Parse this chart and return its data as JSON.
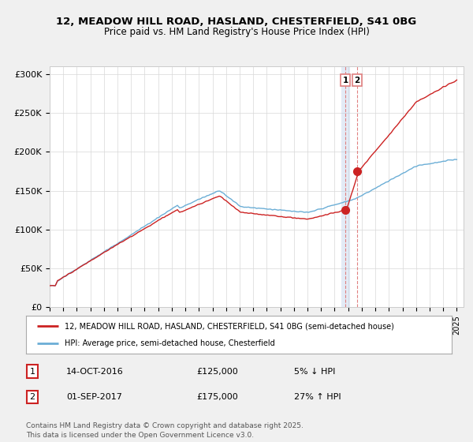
{
  "title_line1": "12, MEADOW HILL ROAD, HASLAND, CHESTERFIELD, S41 0BG",
  "title_line2": "Price paid vs. HM Land Registry's House Price Index (HPI)",
  "ylim": [
    0,
    310000
  ],
  "yticks": [
    0,
    50000,
    100000,
    150000,
    200000,
    250000,
    300000
  ],
  "ytick_labels": [
    "£0",
    "£50K",
    "£100K",
    "£150K",
    "£200K",
    "£250K",
    "£300K"
  ],
  "sale1_year": 2016.79,
  "sale1_price": 125000,
  "sale2_year": 2017.67,
  "sale2_price": 175000,
  "hpi_color": "#6baed6",
  "price_color": "#cc2222",
  "vline_color": "#e08080",
  "vline_color1": "#b0c8e8",
  "legend_label1": "12, MEADOW HILL ROAD, HASLAND, CHESTERFIELD, S41 0BG (semi-detached house)",
  "legend_label2": "HPI: Average price, semi-detached house, Chesterfield",
  "note1_num": "1",
  "note1_date": "14-OCT-2016",
  "note1_price": "£125,000",
  "note1_pct": "5% ↓ HPI",
  "note2_num": "2",
  "note2_date": "01-SEP-2017",
  "note2_price": "£175,000",
  "note2_pct": "27% ↑ HPI",
  "footer": "Contains HM Land Registry data © Crown copyright and database right 2025.\nThis data is licensed under the Open Government Licence v3.0.",
  "bg_color": "#f0f0f0",
  "plot_bg_color": "#ffffff"
}
